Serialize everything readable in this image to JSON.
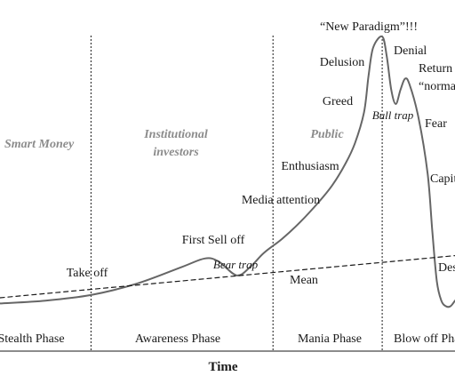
{
  "chart_data": {
    "type": "line",
    "xlabel": "Time",
    "ylabel": "",
    "xlim": [
      0,
      100
    ],
    "ylim": [
      0,
      100
    ],
    "grid": false,
    "series": [
      {
        "style": "solid",
        "color": "#666666",
        "x": [
          0,
          10,
          20,
          30,
          40,
          45,
          48,
          52,
          55,
          58,
          62,
          66,
          70,
          73,
          76,
          78,
          80,
          81,
          82,
          84,
          85,
          86,
          87,
          88,
          89,
          90,
          92,
          94,
          95,
          96,
          97,
          98,
          99,
          100
        ],
        "y": [
          4,
          5,
          7,
          11,
          17,
          20,
          19,
          14,
          17,
          22,
          27,
          33,
          40,
          46,
          54,
          61,
          72,
          85,
          95,
          99,
          92,
          80,
          75,
          80,
          84,
          82,
          70,
          50,
          30,
          12,
          5,
          3,
          3,
          5
        ]
      },
      {
        "style": "dashed",
        "color": "#1a1a1a",
        "x": [
          0,
          100
        ],
        "y": [
          6,
          21
        ]
      }
    ],
    "phases": [
      "Stealth Phase",
      "Awareness Phase",
      "Mania Phase",
      "Blow off Phase"
    ],
    "phase_boundaries_x": [
      20,
      60,
      84
    ],
    "investor_groups": [
      "Smart Money",
      "Institutional investors",
      "Public"
    ],
    "annotations": [
      {
        "text": "Take off",
        "style": "normal"
      },
      {
        "text": "First Sell off",
        "style": "normal"
      },
      {
        "text": "Bear trap",
        "style": "italic"
      },
      {
        "text": "Media attention",
        "style": "normal"
      },
      {
        "text": "Enthusiasm",
        "style": "normal"
      },
      {
        "text": "Greed",
        "style": "normal"
      },
      {
        "text": "Delusion",
        "style": "normal"
      },
      {
        "text": "“New Paradigm”!!!",
        "style": "normal"
      },
      {
        "text": "Denial",
        "style": "normal"
      },
      {
        "text": "Bull trap",
        "style": "italic"
      },
      {
        "text": "Return to",
        "style": "normal"
      },
      {
        "text": "“normal”",
        "style": "normal"
      },
      {
        "text": "Fear",
        "style": "normal"
      },
      {
        "text": "Capitulation",
        "style": "normal"
      },
      {
        "text": "Despair",
        "style": "normal"
      },
      {
        "text": "Mean",
        "style": "normal"
      }
    ]
  }
}
